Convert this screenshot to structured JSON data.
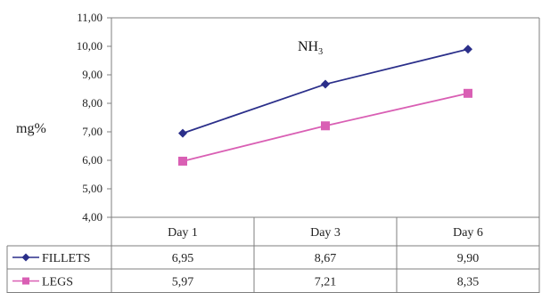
{
  "chart_data": {
    "type": "line",
    "title": "NH",
    "title_subscript": "3",
    "ylabel": "mg%",
    "categories": [
      "Day 1",
      "Day 3",
      "Day 6"
    ],
    "ylim": [
      4.0,
      11.0
    ],
    "yticks": [
      "4,00",
      "5,00",
      "6,00",
      "7,00",
      "8,00",
      "9,00",
      "10,00",
      "11,00"
    ],
    "ytick_values": [
      4,
      5,
      6,
      7,
      8,
      9,
      10,
      11
    ],
    "grid": false,
    "legend_placement": "data table below plot",
    "series": [
      {
        "name": "FILLETS",
        "values": [
          6.95,
          8.67,
          9.9
        ],
        "labels": [
          "6,95",
          "8,67",
          "9,90"
        ],
        "color": "#2b2f8a",
        "marker": "diamond"
      },
      {
        "name": "LEGS",
        "values": [
          5.97,
          7.21,
          8.35
        ],
        "labels": [
          "5,97",
          "7,21",
          "8,35"
        ],
        "color": "#d95fb4",
        "marker": "square"
      }
    ]
  }
}
